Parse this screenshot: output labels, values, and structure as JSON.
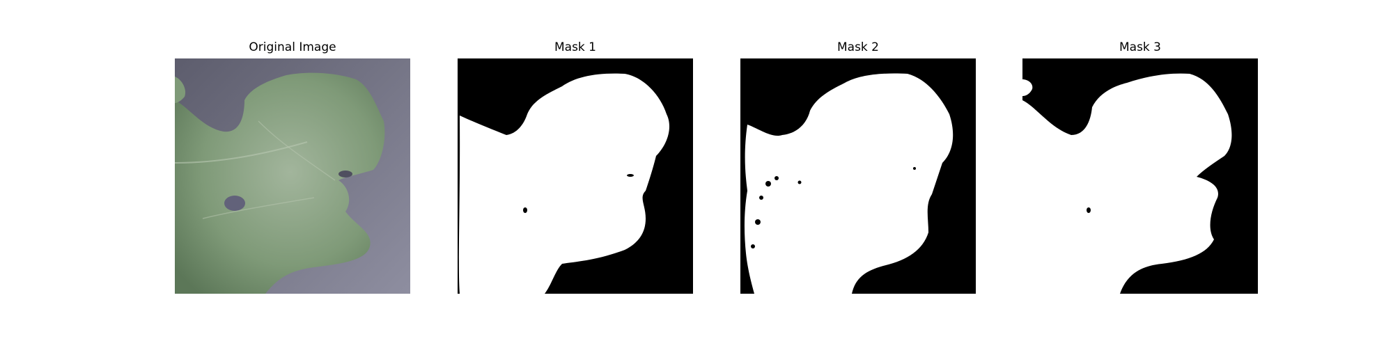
{
  "figure": {
    "panels": [
      {
        "title": "Original Image",
        "kind": "photo",
        "subject": "leaf"
      },
      {
        "title": "Mask 1",
        "kind": "mask"
      },
      {
        "title": "Mask 2",
        "kind": "mask"
      },
      {
        "title": "Mask 3",
        "kind": "mask"
      }
    ]
  },
  "colors": {
    "background_photo": "#6f6e7f",
    "leaf_main": "#7f9a78",
    "leaf_dark": "#5f7a5a",
    "mask_bg": "#000000",
    "mask_fg": "#ffffff"
  }
}
